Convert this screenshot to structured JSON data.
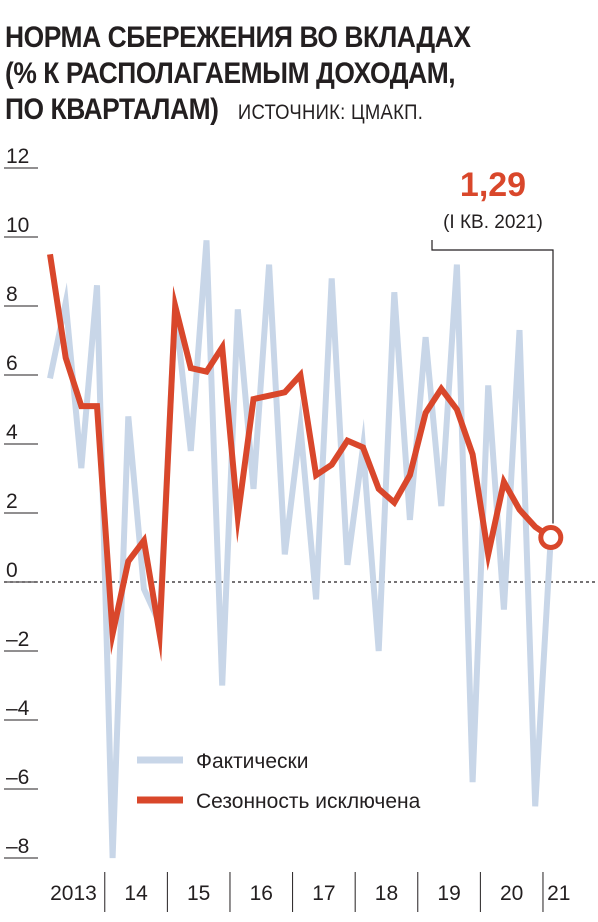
{
  "header": {
    "title_lines": [
      "НОРМА СБЕРЕЖЕНИЯ ВО ВКЛАДАХ",
      "(% К РАСПОЛАГАЕМЫМ ДОХОДАМ,",
      "ПО КВАРТАЛАМ)"
    ],
    "source": "ИСТОЧНИК: ЦМАКП."
  },
  "chart_data": {
    "type": "line",
    "title": "НОРМА СБЕРЕЖЕНИЯ ВО ВКЛАДАХ (% К РАСПОЛАГАЕМЫМ ДОХОДАМ, ПО КВАРТАЛАМ)",
    "x": [
      "2013-Q1",
      "2013-Q2",
      "2013-Q3",
      "2013-Q4",
      "2014-Q1",
      "2014-Q2",
      "2014-Q3",
      "2014-Q4",
      "2015-Q1",
      "2015-Q2",
      "2015-Q3",
      "2015-Q4",
      "2016-Q1",
      "2016-Q2",
      "2016-Q3",
      "2016-Q4",
      "2017-Q1",
      "2017-Q2",
      "2017-Q3",
      "2017-Q4",
      "2018-Q1",
      "2018-Q2",
      "2018-Q3",
      "2018-Q4",
      "2019-Q1",
      "2019-Q2",
      "2019-Q3",
      "2019-Q4",
      "2020-Q1",
      "2020-Q2",
      "2020-Q3",
      "2020-Q4",
      "2021-Q1"
    ],
    "series": [
      {
        "name": "Фактически",
        "color": "#c8d6e8",
        "values": [
          5.9,
          8.1,
          3.3,
          8.6,
          -8.0,
          4.8,
          -0.2,
          -1.2,
          7.9,
          3.8,
          9.9,
          -3.0,
          7.9,
          2.7,
          9.2,
          0.8,
          4.5,
          -0.5,
          8.8,
          0.5,
          3.9,
          -2.0,
          8.4,
          1.8,
          7.1,
          2.2,
          9.2,
          -5.8,
          5.7,
          -0.8,
          7.3,
          -6.5,
          1.29
        ]
      },
      {
        "name": "Сезонность исключена",
        "color": "#d9472b",
        "values": [
          9.5,
          6.5,
          5.1,
          5.1,
          -1.5,
          0.6,
          1.2,
          -1.5,
          8.0,
          6.2,
          6.1,
          6.8,
          1.9,
          5.3,
          5.4,
          5.5,
          6.0,
          3.1,
          3.4,
          4.1,
          3.9,
          2.7,
          2.3,
          3.1,
          4.9,
          5.6,
          5.0,
          3.7,
          0.8,
          2.9,
          2.1,
          1.6,
          1.29
        ]
      }
    ],
    "ylim": [
      -8,
      12
    ],
    "yticks": [
      12,
      10,
      8,
      6,
      4,
      2,
      0,
      -2,
      -4,
      -6,
      -8
    ],
    "ytick_labels": [
      "12",
      "10",
      "8",
      "6",
      "4",
      "2",
      "0",
      "–2",
      "–4",
      "–6",
      "–8"
    ],
    "xtick_labels": [
      "2013",
      "14",
      "15",
      "16",
      "17",
      "18",
      "19",
      "20",
      "21"
    ],
    "zero_line": "dashed",
    "grid": "short y-tick marks only",
    "legend_position": "bottom-left",
    "annotation": {
      "value": "1,29",
      "label": "(I КВ. 2021)",
      "color": "#d9472b"
    }
  }
}
